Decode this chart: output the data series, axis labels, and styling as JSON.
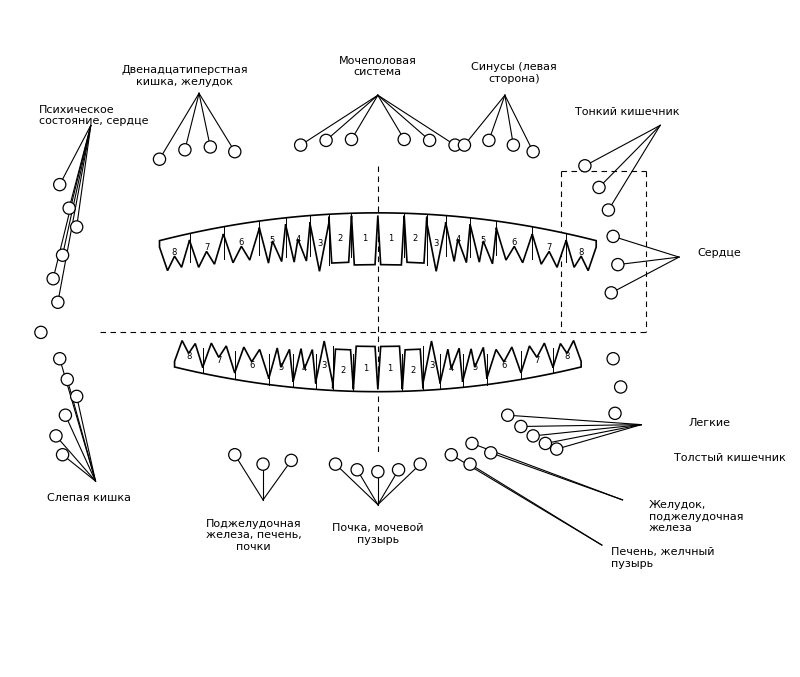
{
  "bg_color": "#ffffff",
  "fig_width": 8.0,
  "fig_height": 6.77,
  "dpi": 100,
  "labels": {
    "top_left1": "Психическое\nсостояние, сердце",
    "top_left2": "Двенадцатиперстная\nкишка, желудок",
    "top_center1": "Мочеполовая\nсистема",
    "top_center2": "Синусы (левая\nсторона)",
    "top_right1": "Тонкий кишечник",
    "top_right2": "Сердце",
    "bottom_left1": "Слепая кишка",
    "bottom_left2": "Поджелудочная\nжелеза, печень,\nпочки",
    "bottom_center": "Почка, мочевой\nпузырь",
    "bottom_right1": "Толстый кишечник",
    "bottom_right2": "Желудок,\nподжелудочная\nжелеза",
    "bottom_right3": "Печень, желчный\nпузырь",
    "bottom_right4": "Легкие"
  }
}
